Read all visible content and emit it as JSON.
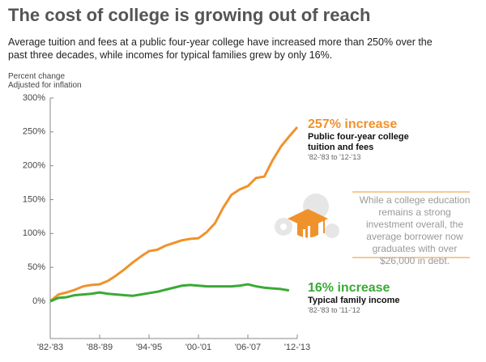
{
  "chart_data": {
    "type": "line",
    "title": "The cost of college is growing out of reach",
    "subtitle": "Average tuition and fees at a public four-year college have increased more than 250% over the past three decades, while incomes for typical families grew by only 16%.",
    "y_label": "Percent change",
    "y_label_note": "Adjusted for inflation",
    "categories": [
      "'82-'83",
      null,
      null,
      null,
      null,
      null,
      "'88-'89",
      null,
      null,
      null,
      null,
      null,
      "'94-'95",
      null,
      null,
      null,
      null,
      null,
      "'00-'01",
      null,
      null,
      null,
      null,
      null,
      "'06-'07",
      null,
      null,
      null,
      null,
      null,
      "'12-'13"
    ],
    "series": [
      {
        "name": "Public four-year college tuition and fees",
        "color": "#f0922b",
        "values": [
          0,
          10,
          13,
          17,
          22,
          24,
          25,
          30,
          38,
          47,
          57,
          66,
          74,
          76,
          82,
          86,
          90,
          92,
          93,
          102,
          115,
          138,
          157,
          165,
          170,
          182,
          184,
          208,
          228,
          243,
          257
        ]
      },
      {
        "name": "Typical family income",
        "color": "#3aaa35",
        "values": [
          0,
          5,
          6,
          9,
          10,
          11,
          13,
          11,
          10,
          9,
          8,
          10,
          12,
          14,
          17,
          20,
          23,
          24,
          23,
          22,
          22,
          22,
          22,
          23,
          25,
          22,
          20,
          19,
          18,
          16,
          null
        ]
      }
    ],
    "annotations": [
      {
        "headline": "257% increase",
        "range": "'82-'83 to '12-'13"
      },
      {
        "headline": "16% increase",
        "range": "'82-'83 to '11-'12"
      }
    ],
    "callout": "While a college education remains a strong investment overall, the average borrower now graduates with over $26,000 in debt.",
    "ylim": [
      -55,
      300
    ],
    "yticks": [
      {
        "value": 0,
        "label": "0%"
      },
      {
        "value": 50,
        "label": "50%"
      },
      {
        "value": 100,
        "label": "100%"
      },
      {
        "value": 150,
        "label": "150%"
      },
      {
        "value": 200,
        "label": "200%"
      },
      {
        "value": 250,
        "label": "250%"
      },
      {
        "value": 300,
        "label": "300%"
      }
    ]
  }
}
